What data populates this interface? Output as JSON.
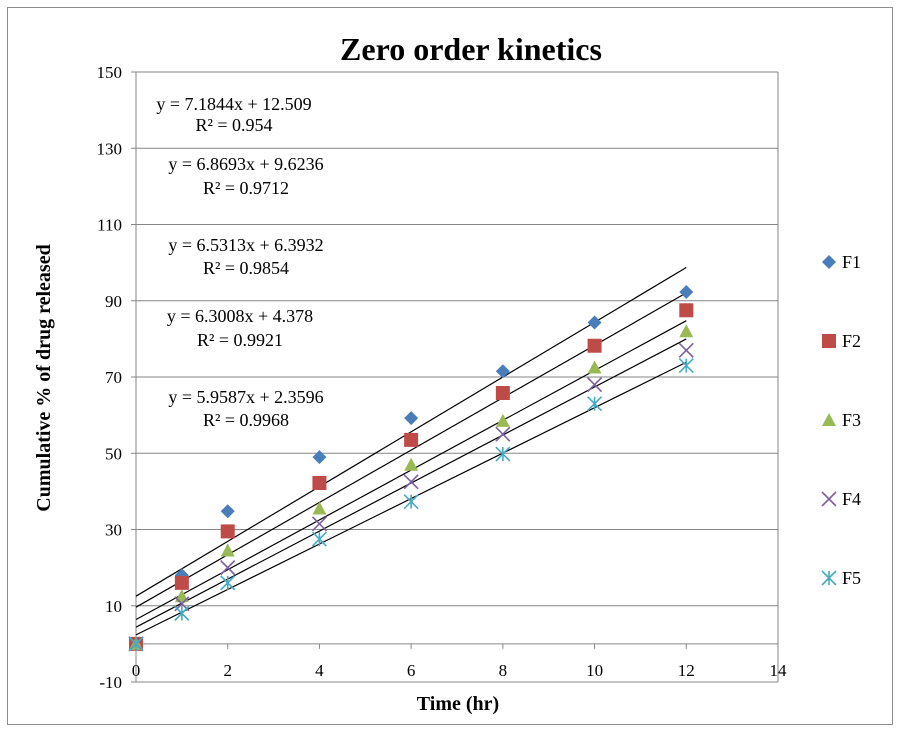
{
  "chart_data": {
    "type": "scatter",
    "title": "Zero order kinetics",
    "xlabel": "Time (hr)",
    "ylabel": "Cumulative % of drug released",
    "xlim": [
      0,
      14
    ],
    "ylim": [
      -10,
      150
    ],
    "xticks": [
      "0",
      "2",
      "4",
      "6",
      "8",
      "10",
      "12",
      "14"
    ],
    "yticks": [
      "-10",
      "10",
      "30",
      "50",
      "70",
      "90",
      "110",
      "130",
      "150"
    ],
    "grid": "horizontal",
    "legend_position": "right",
    "x": [
      0,
      1,
      2,
      4,
      6,
      8,
      10,
      12
    ],
    "series": [
      {
        "name": "F1",
        "marker": "diamond",
        "color": "#4a7ebb",
        "values": [
          0,
          18,
          34.8,
          49,
          59.2,
          71.5,
          84.3,
          92.3
        ],
        "trendline": {
          "slope": 7.1844,
          "intercept": 12.509
        },
        "equation": "y = 7.1844x + 12.509",
        "r2": "R² = 0.954"
      },
      {
        "name": "F2",
        "marker": "square",
        "color": "#be4b48",
        "values": [
          0,
          16,
          29.5,
          42.2,
          53.5,
          65.8,
          78.2,
          87.5
        ],
        "trendline": {
          "slope": 6.8693,
          "intercept": 9.6236
        },
        "equation": "y = 6.8693x + 9.6236",
        "r2": "R² = 0.9712"
      },
      {
        "name": "F3",
        "marker": "triangle",
        "color": "#98b954",
        "values": [
          0,
          12.5,
          24.5,
          35.5,
          47,
          58.5,
          72.5,
          82
        ],
        "trendline": {
          "slope": 6.5313,
          "intercept": 6.3932
        },
        "equation": "y = 6.5313x + 6.3932",
        "r2": "R² = 0.9854"
      },
      {
        "name": "F4",
        "marker": "x",
        "color": "#7d60a0",
        "values": [
          0,
          10.5,
          20,
          31.5,
          42.5,
          55,
          68,
          77
        ],
        "trendline": {
          "slope": 6.3008,
          "intercept": 4.378
        },
        "equation": "y = 6.3008x + 4.378",
        "r2": "R² = 0.9921"
      },
      {
        "name": "F5",
        "marker": "star",
        "color": "#46aac5",
        "values": [
          0,
          8,
          16,
          27.5,
          37.3,
          49.8,
          63,
          73
        ],
        "trendline": {
          "slope": 5.9587,
          "intercept": 2.3596
        },
        "equation": "y = 5.9587x + 2.3596",
        "r2": "R² = 0.9968"
      }
    ]
  }
}
